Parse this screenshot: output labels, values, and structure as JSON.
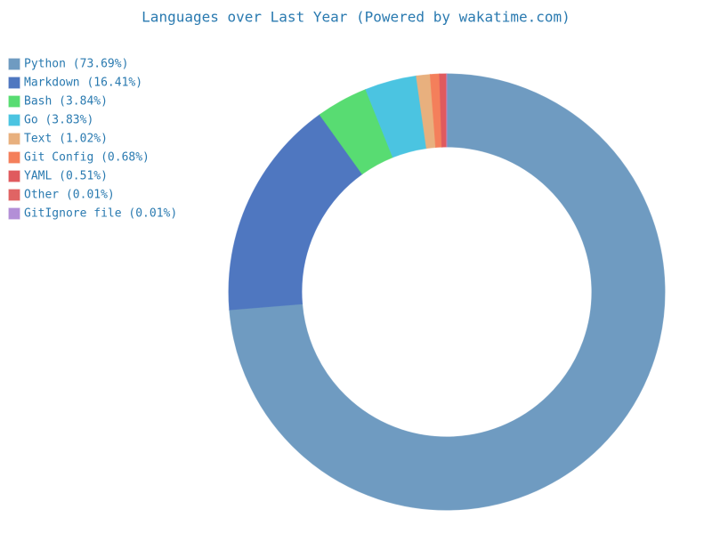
{
  "chart_data": {
    "type": "donut",
    "title": "Languages over Last Year (Powered by wakatime.com)",
    "categories": [
      "Python (73.69%)",
      "Markdown (16.41%)",
      "Bash (3.84%)",
      "Go (3.83%)",
      "Text (1.02%)",
      "Git Config (0.68%)",
      "YAML (0.51%)",
      "Other (0.01%)",
      "GitIgnore file (0.01%)"
    ],
    "values": [
      73.69,
      16.41,
      3.84,
      3.83,
      1.02,
      0.68,
      0.51,
      0.01,
      0.01
    ],
    "colors": [
      "#6f9bc1",
      "#4f77c0",
      "#58dc72",
      "#4bc4e1",
      "#e8b07e",
      "#f47f5b",
      "#e05a5e",
      "#e06464",
      "#b38fd7"
    ],
    "legend": "upper-left"
  }
}
